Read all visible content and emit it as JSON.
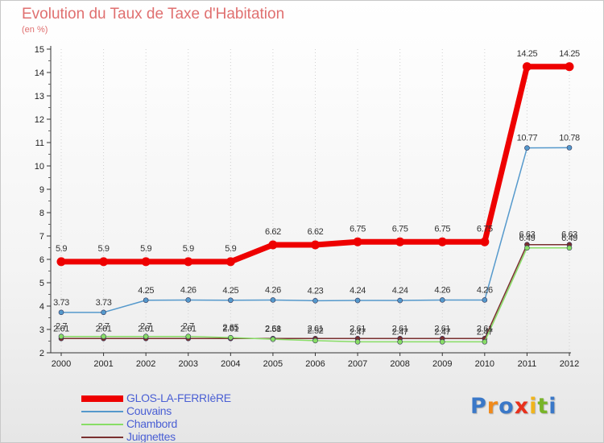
{
  "title": "Evolution du Taux de Taxe d'Habitation",
  "subtitle": "(en %)",
  "logo": {
    "text": "Proxiti",
    "letters": [
      {
        "char": "P",
        "color": "#3a78c8"
      },
      {
        "char": "r",
        "color": "#f08a1c"
      },
      {
        "char": "o",
        "color": "#3a78c8"
      },
      {
        "char": "x",
        "color": "#e8301c"
      },
      {
        "char": "i",
        "color": "#f0b41c"
      },
      {
        "char": "t",
        "color": "#78b428"
      },
      {
        "char": "i",
        "color": "#3a78c8"
      }
    ]
  },
  "chart_data": {
    "type": "line",
    "title": "Evolution du Taux de Taxe d'Habitation",
    "ylabel": "(en %)",
    "xlabel": "",
    "x": [
      "2000",
      "2001",
      "2002",
      "2003",
      "2004",
      "2005",
      "2006",
      "2007",
      "2008",
      "2009",
      "2010",
      "2011",
      "2012"
    ],
    "ylim": [
      2,
      15
    ],
    "yticks": [
      "2",
      "3",
      "4",
      "5",
      "6",
      "7",
      "8",
      "9",
      "10",
      "11",
      "12",
      "13",
      "14",
      "15"
    ],
    "grid": "dotted vertical",
    "legend_position": "bottom-left",
    "series": [
      {
        "name": "GLOS-LA-FERRIèRE",
        "color": "#ee0000",
        "values": [
          5.9,
          5.9,
          5.9,
          5.9,
          5.9,
          6.62,
          6.62,
          6.75,
          6.75,
          6.75,
          6.75,
          14.25,
          14.25
        ],
        "labels": [
          "5.9",
          "5.9",
          "5.9",
          "5.9",
          "5.9",
          "6.62",
          "6.62",
          "6.75",
          "6.75",
          "6.75",
          "6.75",
          "14.25",
          "14.25"
        ]
      },
      {
        "name": "Couvains",
        "color": "#5599cc",
        "values": [
          3.73,
          3.73,
          4.25,
          4.26,
          4.25,
          4.26,
          4.23,
          4.24,
          4.24,
          4.26,
          4.26,
          10.77,
          10.78
        ],
        "labels": [
          "3.73",
          "3.73",
          "4.25",
          "4.26",
          "4.25",
          "4.26",
          "4.23",
          "4.24",
          "4.24",
          "4.26",
          "4.26",
          "10.77",
          "10.78"
        ]
      },
      {
        "name": "Chambord",
        "color": "#88dd66",
        "values": [
          2.7,
          2.7,
          2.7,
          2.7,
          2.65,
          2.58,
          2.52,
          2.47,
          2.47,
          2.47,
          2.47,
          6.49,
          6.49
        ],
        "labels": [
          "2.7",
          "2.7",
          "2.7",
          "2.7",
          "2.65",
          "2.58",
          "2.52",
          "2.47",
          "2.47",
          "2.47",
          "2.47",
          "6.49",
          "6.49"
        ]
      },
      {
        "name": "Juignettes",
        "color": "#7a3030",
        "values": [
          2.61,
          2.61,
          2.61,
          2.61,
          2.61,
          2.61,
          2.61,
          2.61,
          2.61,
          2.61,
          2.61,
          6.63,
          6.63
        ],
        "labels": [
          "2.61",
          "2.61",
          "2.61",
          "2.61",
          "2.61",
          "2.61",
          "2.61",
          "2.61",
          "2.61",
          "2.61",
          "2.61",
          "6.63",
          "6.63"
        ]
      }
    ]
  }
}
